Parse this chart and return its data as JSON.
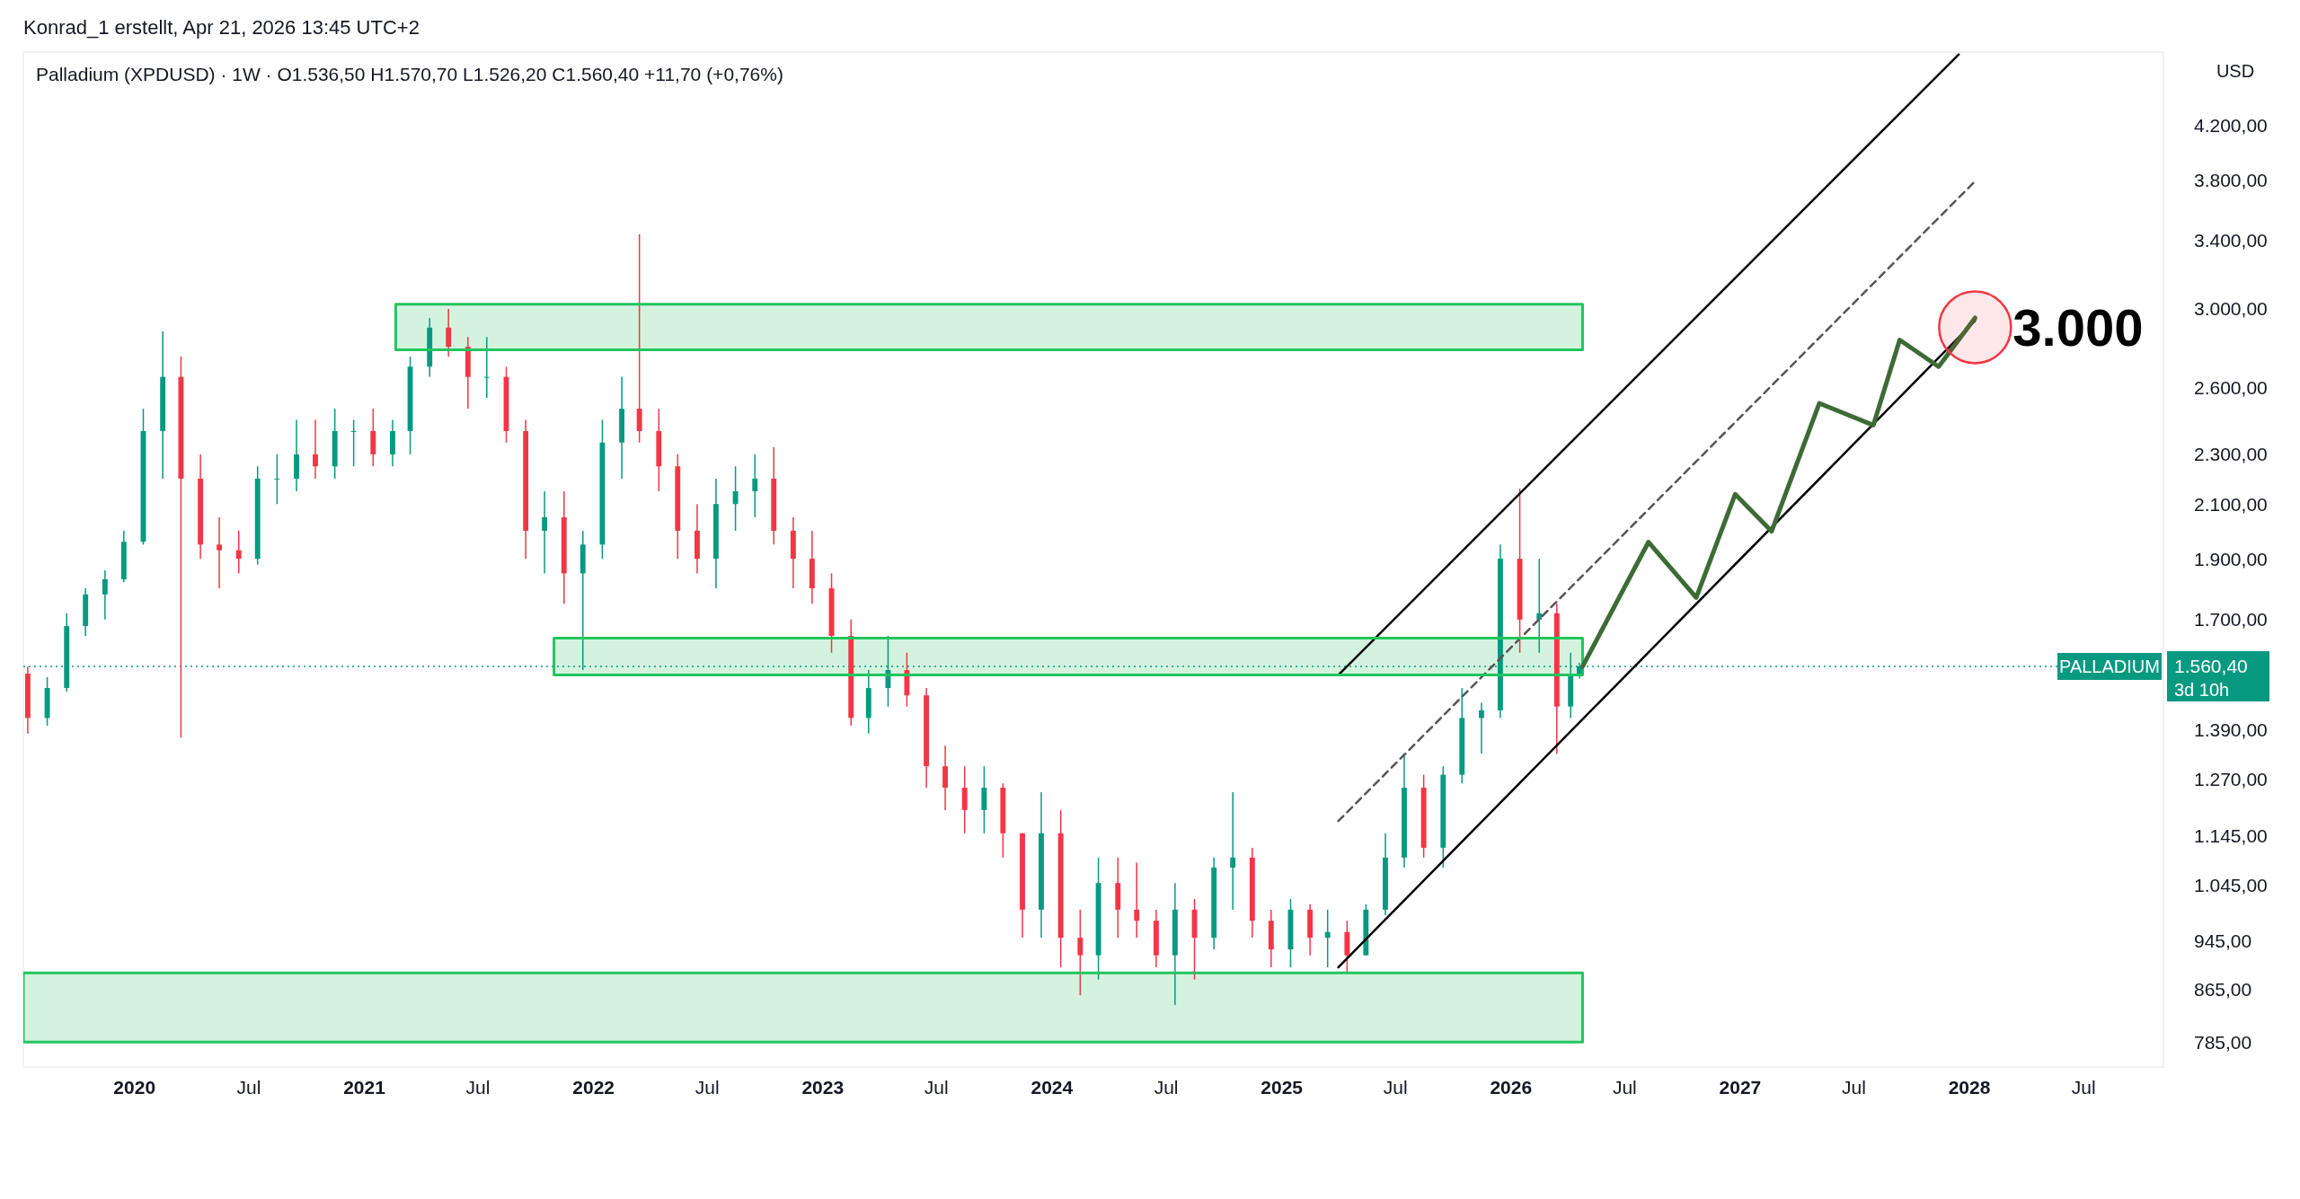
{
  "chart_data": {
    "type": "candlestick",
    "subtitle": "Konrad_1 erstellt, Apr 21, 2026 13:45 UTC+2",
    "title": "Palladium (XPDUSD) · 1W · O1.536,50 H1.570,70 L1.526,20 C1.560,40 +11,70 (+0,76%)",
    "ylabel": "USD",
    "log": true,
    "xlim": [
      "2019-07-08",
      "2028-11-05"
    ],
    "xticks": [
      {
        "value": "2020-01-01",
        "label": "2020"
      },
      {
        "value": "2020-07-01",
        "label": "Jul"
      },
      {
        "value": "2021-01-01",
        "label": "2021"
      },
      {
        "value": "2021-07-01",
        "label": "Jul"
      },
      {
        "value": "2022-01-01",
        "label": "2022"
      },
      {
        "value": "2022-07-01",
        "label": "Jul"
      },
      {
        "value": "2023-01-01",
        "label": "2023"
      },
      {
        "value": "2023-07-01",
        "label": "Jul"
      },
      {
        "value": "2024-01-01",
        "label": "2024"
      },
      {
        "value": "2024-07-01",
        "label": "Jul"
      },
      {
        "value": "2025-01-01",
        "label": "2025"
      },
      {
        "value": "2025-07-01",
        "label": "Jul"
      },
      {
        "value": "2026-01-01",
        "label": "2026"
      },
      {
        "value": "2026-07-01",
        "label": "Jul"
      },
      {
        "value": "2027-01-01",
        "label": "2027"
      },
      {
        "value": "2027-07-01",
        "label": "Jul"
      },
      {
        "value": "2028-01-01",
        "label": "2028"
      },
      {
        "value": "2028-07-01",
        "label": "Jul"
      }
    ],
    "ylim": [
      750,
      4800
    ],
    "yticks": [
      {
        "value": 785,
        "label": "785,00"
      },
      {
        "value": 865,
        "label": "865,00"
      },
      {
        "value": 945,
        "label": "945,00"
      },
      {
        "value": 1045,
        "label": "1.045,00"
      },
      {
        "value": 1145,
        "label": "1.145,00"
      },
      {
        "value": 1270,
        "label": "1.270,00"
      },
      {
        "value": 1390,
        "label": "1.390,00"
      },
      {
        "value": 1700,
        "label": "1.700,00"
      },
      {
        "value": 1900,
        "label": "1.900,00"
      },
      {
        "value": 2100,
        "label": "2.100,00"
      },
      {
        "value": 2300,
        "label": "2.300,00"
      },
      {
        "value": 2600,
        "label": "2.600,00"
      },
      {
        "value": 3000,
        "label": "3.000,00"
      },
      {
        "value": 3400,
        "label": "3.400,00"
      },
      {
        "value": 3800,
        "label": "3.800,00"
      },
      {
        "value": 4200,
        "label": "4.200,00"
      }
    ],
    "x": [
      "2019-07-15",
      "2019-08-15",
      "2019-09-15",
      "2019-10-15",
      "2019-11-15",
      "2019-12-15",
      "2020-01-15",
      "2020-02-15",
      "2020-03-15",
      "2020-04-15",
      "2020-05-15",
      "2020-06-15",
      "2020-07-15",
      "2020-08-15",
      "2020-09-15",
      "2020-10-15",
      "2020-11-15",
      "2020-12-15",
      "2021-01-15",
      "2021-02-15",
      "2021-03-15",
      "2021-04-15",
      "2021-05-15",
      "2021-06-15",
      "2021-07-15",
      "2021-08-15",
      "2021-09-15",
      "2021-10-15",
      "2021-11-15",
      "2021-12-15",
      "2022-01-15",
      "2022-02-15",
      "2022-03-15",
      "2022-04-15",
      "2022-05-15",
      "2022-06-15",
      "2022-07-15",
      "2022-08-15",
      "2022-09-15",
      "2022-10-15",
      "2022-11-15",
      "2022-12-15",
      "2023-01-15",
      "2023-02-15",
      "2023-03-15",
      "2023-04-15",
      "2023-05-15",
      "2023-06-15",
      "2023-07-15",
      "2023-08-15",
      "2023-09-15",
      "2023-10-15",
      "2023-11-15",
      "2023-12-15",
      "2024-01-15",
      "2024-02-15",
      "2024-03-15",
      "2024-04-15",
      "2024-05-15",
      "2024-06-15",
      "2024-07-15",
      "2024-08-15",
      "2024-09-15",
      "2024-10-15",
      "2024-11-15",
      "2024-12-15",
      "2025-01-15",
      "2025-02-15",
      "2025-03-15",
      "2025-04-15",
      "2025-05-15",
      "2025-06-15",
      "2025-07-15",
      "2025-08-15",
      "2025-09-15",
      "2025-10-15",
      "2025-11-15",
      "2025-12-15",
      "2026-01-15",
      "2026-02-15",
      "2026-03-15",
      "2026-04-06",
      "2026-04-20"
    ],
    "ohlc": [
      [
        1540,
        1560,
        1380,
        1420
      ],
      [
        1420,
        1530,
        1400,
        1500
      ],
      [
        1500,
        1720,
        1490,
        1680
      ],
      [
        1680,
        1800,
        1650,
        1780
      ],
      [
        1780,
        1860,
        1700,
        1830
      ],
      [
        1830,
        2000,
        1820,
        1960
      ],
      [
        1960,
        2500,
        1950,
        2400
      ],
      [
        2400,
        2880,
        2200,
        2650
      ],
      [
        2650,
        2750,
        1370,
        2200
      ],
      [
        2200,
        2300,
        1900,
        1950
      ],
      [
        1950,
        2050,
        1800,
        1930
      ],
      [
        1930,
        2000,
        1850,
        1900
      ],
      [
        1900,
        2250,
        1880,
        2200
      ],
      [
        2200,
        2300,
        2100,
        2200
      ],
      [
        2200,
        2450,
        2150,
        2300
      ],
      [
        2300,
        2450,
        2200,
        2250
      ],
      [
        2250,
        2500,
        2200,
        2400
      ],
      [
        2400,
        2450,
        2250,
        2400
      ],
      [
        2400,
        2500,
        2250,
        2300
      ],
      [
        2300,
        2450,
        2250,
        2400
      ],
      [
        2400,
        2750,
        2300,
        2700
      ],
      [
        2700,
        2950,
        2650,
        2900
      ],
      [
        2900,
        3000,
        2750,
        2800
      ],
      [
        2800,
        2850,
        2500,
        2650
      ],
      [
        2650,
        2850,
        2550,
        2650
      ],
      [
        2650,
        2700,
        2350,
        2400
      ],
      [
        2400,
        2450,
        1900,
        2000
      ],
      [
        2000,
        2150,
        1850,
        2050
      ],
      [
        2050,
        2150,
        1750,
        1850
      ],
      [
        1850,
        2000,
        1550,
        1950
      ],
      [
        1950,
        2450,
        1900,
        2350
      ],
      [
        2350,
        2650,
        2200,
        2500
      ],
      [
        2500,
        3440,
        2350,
        2400
      ],
      [
        2400,
        2500,
        2150,
        2250
      ],
      [
        2250,
        2300,
        1900,
        2000
      ],
      [
        2000,
        2100,
        1850,
        1900
      ],
      [
        1900,
        2200,
        1800,
        2100
      ],
      [
        2100,
        2250,
        2000,
        2150
      ],
      [
        2150,
        2300,
        2050,
        2200
      ],
      [
        2200,
        2330,
        1950,
        2000
      ],
      [
        2000,
        2050,
        1800,
        1900
      ],
      [
        1900,
        2000,
        1750,
        1800
      ],
      [
        1800,
        1850,
        1600,
        1650
      ],
      [
        1650,
        1700,
        1400,
        1420
      ],
      [
        1420,
        1550,
        1380,
        1500
      ],
      [
        1500,
        1650,
        1450,
        1550
      ],
      [
        1550,
        1600,
        1450,
        1480
      ],
      [
        1480,
        1500,
        1250,
        1300
      ],
      [
        1300,
        1350,
        1200,
        1250
      ],
      [
        1250,
        1300,
        1150,
        1200
      ],
      [
        1200,
        1300,
        1150,
        1250
      ],
      [
        1250,
        1260,
        1100,
        1150
      ],
      [
        1150,
        1150,
        950,
        1000
      ],
      [
        1000,
        1240,
        950,
        1150
      ],
      [
        1150,
        1200,
        900,
        950
      ],
      [
        950,
        1000,
        855,
        920
      ],
      [
        920,
        1100,
        880,
        1050
      ],
      [
        1050,
        1100,
        950,
        1000
      ],
      [
        1000,
        1090,
        950,
        980
      ],
      [
        980,
        1000,
        900,
        920
      ],
      [
        920,
        1050,
        840,
        1000
      ],
      [
        1000,
        1020,
        880,
        950
      ],
      [
        950,
        1100,
        930,
        1080
      ],
      [
        1080,
        1240,
        1000,
        1100
      ],
      [
        1100,
        1120,
        950,
        980
      ],
      [
        980,
        1000,
        900,
        930
      ],
      [
        930,
        1020,
        900,
        1000
      ],
      [
        1000,
        1010,
        920,
        950
      ],
      [
        950,
        1000,
        900,
        960
      ],
      [
        960,
        980,
        890,
        920
      ],
      [
        920,
        1010,
        920,
        1000
      ],
      [
        1000,
        1150,
        990,
        1100
      ],
      [
        1100,
        1330,
        1080,
        1250
      ],
      [
        1250,
        1280,
        1100,
        1120
      ],
      [
        1120,
        1300,
        1080,
        1280
      ],
      [
        1280,
        1500,
        1260,
        1420
      ],
      [
        1420,
        1460,
        1330,
        1440
      ],
      [
        1440,
        1950,
        1420,
        1900
      ],
      [
        1900,
        2160,
        1600,
        1700
      ],
      [
        1700,
        1900,
        1600,
        1720
      ],
      [
        1720,
        1750,
        1330,
        1450
      ],
      [
        1450,
        1600,
        1420,
        1536.5
      ],
      [
        1536.5,
        1570.7,
        1526.2,
        1560.4
      ]
    ],
    "colors": [
      "#f23645",
      "#089981",
      "#089981",
      "#089981",
      "#089981",
      "#089981",
      "#089981",
      "#089981",
      "#f23645",
      "#f23645",
      "#f23645",
      "#f23645",
      "#089981",
      "#089981",
      "#089981",
      "#f23645",
      "#089981",
      "#089981",
      "#f23645",
      "#089981",
      "#089981",
      "#089981",
      "#f23645",
      "#f23645",
      "#089981",
      "#f23645",
      "#f23645",
      "#089981",
      "#f23645",
      "#089981",
      "#089981",
      "#089981",
      "#f23645",
      "#f23645",
      "#f23645",
      "#f23645",
      "#089981",
      "#089981",
      "#089981",
      "#f23645",
      "#f23645",
      "#f23645",
      "#f23645",
      "#f23645",
      "#089981",
      "#089981",
      "#f23645",
      "#f23645",
      "#f23645",
      "#f23645",
      "#089981",
      "#f23645",
      "#f23645",
      "#089981",
      "#f23645",
      "#f23645",
      "#089981",
      "#f23645",
      "#f23645",
      "#f23645",
      "#089981",
      "#f23645",
      "#089981",
      "#089981",
      "#f23645",
      "#f23645",
      "#089981",
      "#f23645",
      "#089981",
      "#f23645",
      "#089981",
      "#089981",
      "#089981",
      "#f23645",
      "#089981",
      "#089981",
      "#089981",
      "#089981",
      "#f23645",
      "#089981",
      "#f23645",
      "#089981",
      "#089981"
    ],
    "series": [
      {
        "type": "line",
        "color": "#000000",
        "line_style": "solid",
        "x": [
          "2025-04-01",
          "2028-01-10"
        ],
        "values": [
          900,
          2936
        ]
      },
      {
        "type": "line",
        "color": "#000000",
        "line_style": "solid",
        "x": [
          "2025-04-01",
          "2027-12-15"
        ],
        "values": [
          1536,
          4780
        ]
      },
      {
        "type": "line",
        "color": "#555555",
        "line_style": "dashed",
        "x": [
          "2025-04-01",
          "2028-01-10"
        ],
        "values": [
          1176,
          3790
        ]
      },
      {
        "type": "line",
        "color": "#3d6b35",
        "line_style": "solid",
        "x": [
          "2026-04-25",
          "2026-08-08",
          "2026-10-23",
          "2026-12-24",
          "2027-02-20",
          "2027-05-07",
          "2027-08-01",
          "2027-09-12",
          "2027-11-13",
          "2028-01-10"
        ],
        "values": [
          1560,
          1959,
          1770,
          2138,
          1998,
          2525,
          2426,
          2835,
          2700,
          2952
        ]
      },
      {
        "type": "line",
        "color": "#22c55e",
        "line_style": "solid",
        "x": [
          "2021-02-20",
          "2026-04-25"
        ],
        "values": [
          3026,
          3026
        ]
      },
      {
        "type": "line",
        "color": "#22c55e",
        "line_style": "solid",
        "x": [
          "2021-02-20",
          "2026-04-25"
        ],
        "values": [
          2785,
          2785
        ]
      },
      {
        "type": "line",
        "color": "#22c55e",
        "line_style": "solid",
        "x": [
          "2021-10-30",
          "2026-04-25"
        ],
        "values": [
          1643,
          1643
        ]
      },
      {
        "type": "line",
        "color": "#22c55e",
        "line_style": "solid",
        "x": [
          "2021-10-30",
          "2026-04-25"
        ],
        "values": [
          1536,
          1536
        ]
      },
      {
        "type": "line",
        "color": "#22c55e",
        "line_style": "solid",
        "x": [
          "2019-07-08",
          "2026-04-25"
        ],
        "values": [
          891,
          891
        ]
      },
      {
        "type": "line",
        "color": "#22c55e",
        "line_style": "solid",
        "x": [
          "2019-07-08",
          "2026-04-25"
        ],
        "values": [
          785,
          785
        ]
      }
    ],
    "ref_lines": [
      {
        "axis": "y",
        "value": 1560.4,
        "label": "1.560,40",
        "color": "#089981",
        "line_style": "dotted"
      }
    ],
    "annotations": [
      {
        "text": "3.000",
        "x": "2028-01-10",
        "y": 2940
      },
      {
        "text": "PALLADIUM",
        "y": 1560.4
      },
      "3d 10h"
    ]
  }
}
